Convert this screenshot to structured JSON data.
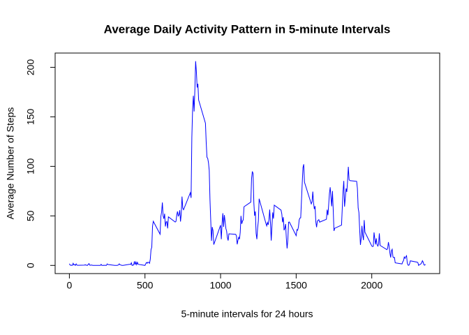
{
  "chart_data": {
    "type": "line",
    "title": "Average Daily Activity Pattern in 5-minute Intervals",
    "xlabel": "5-minute intervals for 24 hours",
    "ylabel": "Average Number of Steps",
    "color": "#0000ff",
    "xlim": [
      -94.2,
      2449.2
    ],
    "ylim": [
      -8.25,
      214.4
    ],
    "xticks": [
      0,
      500,
      1000,
      1500,
      2000
    ],
    "yticks": [
      0,
      50,
      100,
      150,
      200
    ],
    "x": [
      0,
      5,
      10,
      15,
      20,
      25,
      30,
      35,
      40,
      45,
      50,
      55,
      100,
      105,
      110,
      115,
      120,
      125,
      130,
      135,
      140,
      145,
      150,
      155,
      200,
      205,
      210,
      215,
      220,
      225,
      230,
      235,
      240,
      245,
      250,
      255,
      300,
      305,
      310,
      315,
      320,
      325,
      330,
      335,
      340,
      345,
      350,
      355,
      400,
      405,
      410,
      415,
      420,
      425,
      430,
      435,
      440,
      445,
      450,
      455,
      500,
      505,
      510,
      515,
      520,
      525,
      530,
      535,
      540,
      545,
      550,
      555,
      600,
      605,
      610,
      615,
      620,
      625,
      630,
      635,
      640,
      645,
      650,
      655,
      700,
      705,
      710,
      715,
      720,
      725,
      730,
      735,
      740,
      745,
      750,
      755,
      800,
      805,
      810,
      815,
      820,
      825,
      830,
      835,
      840,
      845,
      850,
      855,
      900,
      905,
      910,
      915,
      920,
      925,
      930,
      935,
      940,
      945,
      950,
      955,
      1000,
      1005,
      1010,
      1015,
      1020,
      1025,
      1030,
      1035,
      1040,
      1045,
      1050,
      1055,
      1100,
      1105,
      1110,
      1115,
      1120,
      1125,
      1130,
      1135,
      1140,
      1145,
      1150,
      1155,
      1200,
      1205,
      1210,
      1215,
      1220,
      1225,
      1230,
      1235,
      1240,
      1245,
      1250,
      1255,
      1300,
      1305,
      1310,
      1315,
      1320,
      1325,
      1330,
      1335,
      1340,
      1345,
      1350,
      1355,
      1400,
      1405,
      1410,
      1415,
      1420,
      1425,
      1430,
      1435,
      1440,
      1445,
      1450,
      1455,
      1500,
      1505,
      1510,
      1515,
      1520,
      1525,
      1530,
      1535,
      1540,
      1545,
      1550,
      1555,
      1600,
      1605,
      1610,
      1615,
      1620,
      1625,
      1630,
      1635,
      1640,
      1645,
      1650,
      1655,
      1700,
      1705,
      1710,
      1715,
      1720,
      1725,
      1730,
      1735,
      1740,
      1745,
      1750,
      1755,
      1800,
      1805,
      1810,
      1815,
      1820,
      1825,
      1830,
      1835,
      1840,
      1845,
      1850,
      1855,
      1900,
      1905,
      1910,
      1915,
      1920,
      1925,
      1930,
      1935,
      1940,
      1945,
      1950,
      1955,
      2000,
      2005,
      2010,
      2015,
      2020,
      2025,
      2030,
      2035,
      2040,
      2045,
      2050,
      2055,
      2100,
      2105,
      2110,
      2115,
      2120,
      2125,
      2130,
      2135,
      2140,
      2145,
      2150,
      2155,
      2200,
      2205,
      2210,
      2215,
      2220,
      2225,
      2230,
      2235,
      2240,
      2245,
      2250,
      2255,
      2300,
      2305,
      2310,
      2315,
      2320,
      2325,
      2330,
      2335,
      2340,
      2345,
      2350,
      2355
    ],
    "values": [
      1.7,
      0.3,
      0.1,
      0.2,
      0.1,
      2.1,
      0.5,
      0.9,
      0,
      1.5,
      0.3,
      0.1,
      0.3,
      0.7,
      0.2,
      0.3,
      0,
      1.1,
      1.8,
      0.2,
      0.2,
      0.4,
      0.3,
      0,
      0,
      0,
      1.1,
      0,
      0,
      0.1,
      0,
      0.2,
      0,
      0,
      1.5,
      0.9,
      0,
      0,
      0,
      0,
      0.2,
      0.6,
      1.6,
      0.6,
      0.5,
      0.1,
      0,
      0,
      1.2,
      0.9,
      2.6,
      0,
      0.3,
      0.4,
      4.1,
      0.7,
      3.5,
      0.8,
      3.1,
      1.1,
      0,
      1.6,
      3,
      2.2,
      3.3,
      3,
      2.1,
      6.1,
      16,
      18.3,
      39.5,
      44.5,
      31.5,
      49.3,
      53.8,
      63.5,
      50,
      47.1,
      52.2,
      39.3,
      44,
      44.2,
      37.4,
      49,
      43.8,
      44.4,
      50.5,
      54.5,
      49.9,
      51,
      55.7,
      44.3,
      52.3,
      69.5,
      57.8,
      56.2,
      73.4,
      68.2,
      129.4,
      157.5,
      171.2,
      155.4,
      177.3,
      206.2,
      195.9,
      179.6,
      183.4,
      167,
      143.5,
      124,
      109.1,
      108.1,
      103.7,
      95.9,
      66.2,
      45.2,
      24.8,
      38.8,
      35,
      21,
      40.6,
      26.5,
      42.4,
      52.7,
      38.9,
      50.8,
      44.3,
      37.4,
      34.7,
      28.3,
      25.1,
      31.9,
      31.4,
      29.7,
      21.3,
      25.5,
      28.4,
      26.5,
      33.4,
      50,
      42,
      44.6,
      46,
      59.2,
      63.9,
      87.7,
      94.8,
      92.8,
      63.4,
      50.2,
      54.5,
      32.4,
      26.5,
      37.7,
      45.1,
      67.3,
      42.3,
      39.9,
      43.3,
      40.98,
      46.2,
      56.4,
      42.8,
      25.1,
      39.9,
      53.5,
      47.3,
      60.8,
      55.8,
      51.96,
      43.6,
      48.7,
      35.5,
      37.5,
      41.8,
      27.5,
      17.1,
      26.1,
      43.6,
      43.8,
      30,
      36.1,
      35.5,
      38.8,
      46,
      47.8,
      48.1,
      65.3,
      82.9,
      98.7,
      102.1,
      83.96,
      62.1,
      64.1,
      74.5,
      63.2,
      56.9,
      59.8,
      43.9,
      38.6,
      44.7,
      45.5,
      46.2,
      43.7,
      46.6,
      56.3,
      50.7,
      61.2,
      72.7,
      78.9,
      68.9,
      59.7,
      75.1,
      56.5,
      34.8,
      37.5,
      40.7,
      58,
      74.7,
      85.3,
      59.3,
      67.8,
      77.7,
      74.2,
      85.3,
      99.5,
      86.6,
      85.6,
      84.9,
      77.8,
      58,
      53.4,
      36.3,
      20.7,
      27.4,
      40,
      30.2,
      25.5,
      45.7,
      33.5,
      19.6,
      19,
      19.3,
      33.3,
      26.8,
      21.2,
      27.3,
      21.3,
      19.5,
      21.3,
      32.3,
      20.2,
      15.9,
      17.2,
      23.5,
      19.2,
      12.5,
      8,
      14.7,
      16.3,
      8.7,
      7.8,
      8.1,
      2.6,
      1.5,
      3.7,
      4.8,
      8.5,
      7.1,
      8.7,
      9.8,
      2.2,
      0.3,
      0.1,
      1.6,
      4.6,
      3.3,
      2.8,
      0,
      0.8,
      1,
      1.6,
      2.6,
      4.7,
      3.3,
      0.6,
      0.2,
      1.1
    ]
  }
}
